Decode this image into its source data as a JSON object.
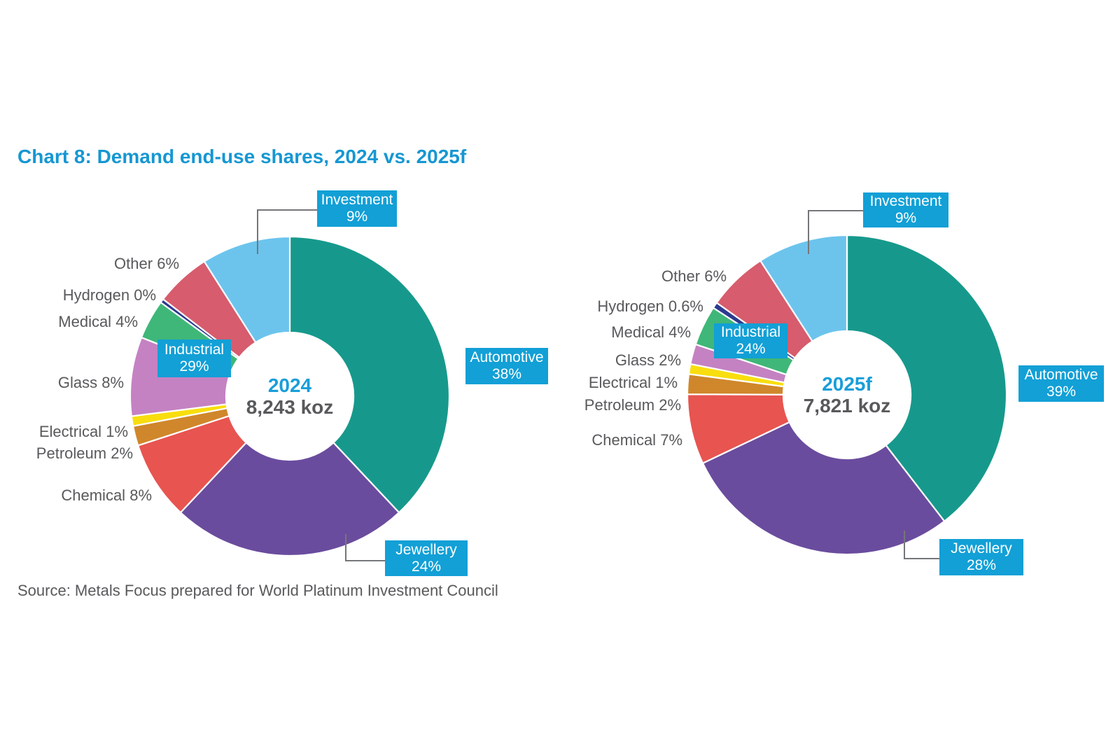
{
  "title": "Chart 8: Demand end-use shares, 2024 vs. 2025f",
  "source": "Source: Metals Focus prepared for World Platinum Investment Council",
  "colors": {
    "title_blue": "#1697D2",
    "callout_box_blue": "#12A0D6",
    "center_year_blue": "#189ED9",
    "text_gray": "#58595B",
    "leader_gray": "#75767A",
    "separator_white": "#FFFFFF"
  },
  "chart_data": [
    {
      "type": "pie",
      "variant": "donut",
      "title": "2024",
      "center_label": "2024",
      "center_total": "8,243 koz",
      "units": "percent share of demand",
      "start_angle_deg": 0,
      "direction": "clockwise",
      "segments": [
        {
          "name": "Automotive",
          "pct": "38%",
          "value": 38,
          "color": "#16998C",
          "label_style": "boxed"
        },
        {
          "name": "Jewellery",
          "pct": "24%",
          "value": 24,
          "color": "#6A4C9E",
          "label_style": "boxed"
        },
        {
          "name": "Chemical",
          "pct": "8%",
          "value": 8,
          "color": "#E85450",
          "label_style": "plain"
        },
        {
          "name": "Petroleum",
          "pct": "2%",
          "value": 2,
          "color": "#D0872B",
          "label_style": "plain"
        },
        {
          "name": "Electrical",
          "pct": "1%",
          "value": 1,
          "color": "#F8DE0E",
          "label_style": "plain"
        },
        {
          "name": "Glass",
          "pct": "8%",
          "value": 8,
          "color": "#C482C2",
          "label_style": "plain"
        },
        {
          "name": "Medical",
          "pct": "4%",
          "value": 4,
          "color": "#3FB778",
          "label_style": "plain"
        },
        {
          "name": "Hydrogen",
          "pct": "0%",
          "value": 0,
          "draw_value": 0.4,
          "color": "#2C3A8F",
          "label_style": "plain"
        },
        {
          "name": "Other",
          "pct": "6%",
          "value": 6,
          "draw_value": 5.6,
          "color": "#D75C6D",
          "label_style": "plain"
        },
        {
          "name": "Investment",
          "pct": "9%",
          "value": 9,
          "color": "#6CC4ED",
          "label_style": "boxed"
        }
      ],
      "group_label": {
        "name": "Industrial",
        "pct": "29%"
      }
    },
    {
      "type": "pie",
      "variant": "donut",
      "title": "2025f",
      "center_label": "2025f",
      "center_total": "7,821 koz",
      "units": "percent share of demand",
      "start_angle_deg": 0,
      "direction": "clockwise",
      "segments": [
        {
          "name": "Automotive",
          "pct": "39%",
          "value": 39,
          "color": "#16998C",
          "label_style": "boxed"
        },
        {
          "name": "Jewellery",
          "pct": "28%",
          "value": 28,
          "color": "#6A4C9E",
          "label_style": "boxed"
        },
        {
          "name": "Chemical",
          "pct": "7%",
          "value": 7,
          "color": "#E85450",
          "label_style": "plain"
        },
        {
          "name": "Petroleum",
          "pct": "2%",
          "value": 2,
          "color": "#D0872B",
          "label_style": "plain"
        },
        {
          "name": "Electrical",
          "pct": "1%",
          "value": 1,
          "color": "#F8DE0E",
          "label_style": "plain"
        },
        {
          "name": "Glass",
          "pct": "2%",
          "value": 2,
          "color": "#C482C2",
          "label_style": "plain"
        },
        {
          "name": "Medical",
          "pct": "4%",
          "value": 4,
          "color": "#3FB778",
          "label_style": "plain"
        },
        {
          "name": "Hydrogen",
          "pct": "0.6%",
          "value": 0.6,
          "color": "#2C3A8F",
          "label_style": "plain"
        },
        {
          "name": "Other",
          "pct": "6%",
          "value": 6,
          "color": "#D75C6D",
          "label_style": "plain"
        },
        {
          "name": "Investment",
          "pct": "9%",
          "value": 9,
          "color": "#6CC4ED",
          "label_style": "boxed"
        }
      ],
      "group_label": {
        "name": "Industrial",
        "pct": "24%"
      }
    }
  ]
}
